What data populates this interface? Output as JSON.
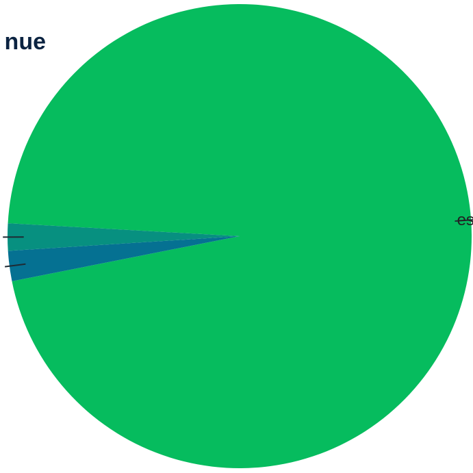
{
  "chart_data": {
    "type": "pie",
    "title": "nue",
    "slices": [
      {
        "label": "es",
        "value": 96.0,
        "color": "#06BC5E"
      },
      {
        "label": "",
        "value": 2.1,
        "color": "#057192"
      },
      {
        "label": "",
        "value": 1.9,
        "color": "#079080"
      }
    ],
    "colors": {
      "title": "#0B2341",
      "label_text": "#222222",
      "leader_line": "#1f2a33"
    },
    "legend": "none",
    "grid": false
  }
}
